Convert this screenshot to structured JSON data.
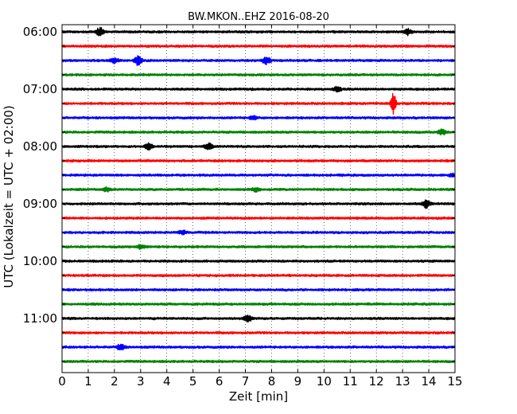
{
  "chart_data": {
    "type": "line",
    "title": "BW.MKON..EHZ 2016-08-20",
    "xlabel": "Zeit  [min]",
    "ylabel": "UTC (Lokalzeit = UTC + 02:00)",
    "xlim": [
      0,
      15
    ],
    "x_ticks": [
      "0",
      "1",
      "2",
      "3",
      "4",
      "5",
      "6",
      "7",
      "8",
      "9",
      "10",
      "11",
      "12",
      "13",
      "14",
      "15"
    ],
    "y_tick_labels": [
      "06:00",
      "07:00",
      "08:00",
      "09:00",
      "10:00",
      "11:00"
    ],
    "grid": "vertical dotted",
    "trace_colors": [
      "#000000",
      "#ff0000",
      "#0000ff",
      "#008000"
    ],
    "traces": [
      {
        "start": "06:00",
        "color": "#000000",
        "events": [
          {
            "minute": 1.45,
            "amplitude": 0.35
          },
          {
            "minute": 13.2,
            "amplitude": 0.25
          }
        ]
      },
      {
        "start": "06:15",
        "color": "#ff0000",
        "events": []
      },
      {
        "start": "06:30",
        "color": "#0000ff",
        "events": [
          {
            "minute": 2.0,
            "amplitude": 0.2
          },
          {
            "minute": 2.9,
            "amplitude": 0.45
          },
          {
            "minute": 7.8,
            "amplitude": 0.3
          }
        ]
      },
      {
        "start": "06:45",
        "color": "#008000",
        "events": []
      },
      {
        "start": "07:00",
        "color": "#000000",
        "events": [
          {
            "minute": 10.5,
            "amplitude": 0.2
          }
        ]
      },
      {
        "start": "07:15",
        "color": "#ff0000",
        "events": [
          {
            "minute": 12.65,
            "amplitude": 1.0
          }
        ]
      },
      {
        "start": "07:30",
        "color": "#0000ff",
        "events": [
          {
            "minute": 7.3,
            "amplitude": 0.15
          }
        ]
      },
      {
        "start": "07:45",
        "color": "#008000",
        "events": [
          {
            "minute": 14.5,
            "amplitude": 0.2
          }
        ]
      },
      {
        "start": "08:00",
        "color": "#000000",
        "events": [
          {
            "minute": 3.3,
            "amplitude": 0.25
          },
          {
            "minute": 5.6,
            "amplitude": 0.3
          }
        ]
      },
      {
        "start": "08:15",
        "color": "#ff0000",
        "events": []
      },
      {
        "start": "08:30",
        "color": "#0000ff",
        "events": [
          {
            "minute": 14.9,
            "amplitude": 0.15
          }
        ]
      },
      {
        "start": "08:45",
        "color": "#008000",
        "events": [
          {
            "minute": 1.7,
            "amplitude": 0.15
          },
          {
            "minute": 7.4,
            "amplitude": 0.15
          }
        ]
      },
      {
        "start": "09:00",
        "color": "#000000",
        "events": [
          {
            "minute": 13.9,
            "amplitude": 0.35
          }
        ]
      },
      {
        "start": "09:15",
        "color": "#ff0000",
        "events": []
      },
      {
        "start": "09:30",
        "color": "#0000ff",
        "events": [
          {
            "minute": 4.6,
            "amplitude": 0.15
          }
        ]
      },
      {
        "start": "09:45",
        "color": "#008000",
        "events": [
          {
            "minute": 3.0,
            "amplitude": 0.15
          }
        ]
      },
      {
        "start": "10:00",
        "color": "#000000",
        "events": []
      },
      {
        "start": "10:15",
        "color": "#ff0000",
        "events": []
      },
      {
        "start": "10:30",
        "color": "#0000ff",
        "events": []
      },
      {
        "start": "10:45",
        "color": "#008000",
        "events": []
      },
      {
        "start": "11:00",
        "color": "#000000",
        "events": [
          {
            "minute": 7.1,
            "amplitude": 0.3
          }
        ]
      },
      {
        "start": "11:15",
        "color": "#ff0000",
        "events": []
      },
      {
        "start": "11:30",
        "color": "#0000ff",
        "events": [
          {
            "minute": 2.25,
            "amplitude": 0.25
          }
        ]
      },
      {
        "start": "11:45",
        "color": "#008000",
        "events": []
      }
    ]
  }
}
